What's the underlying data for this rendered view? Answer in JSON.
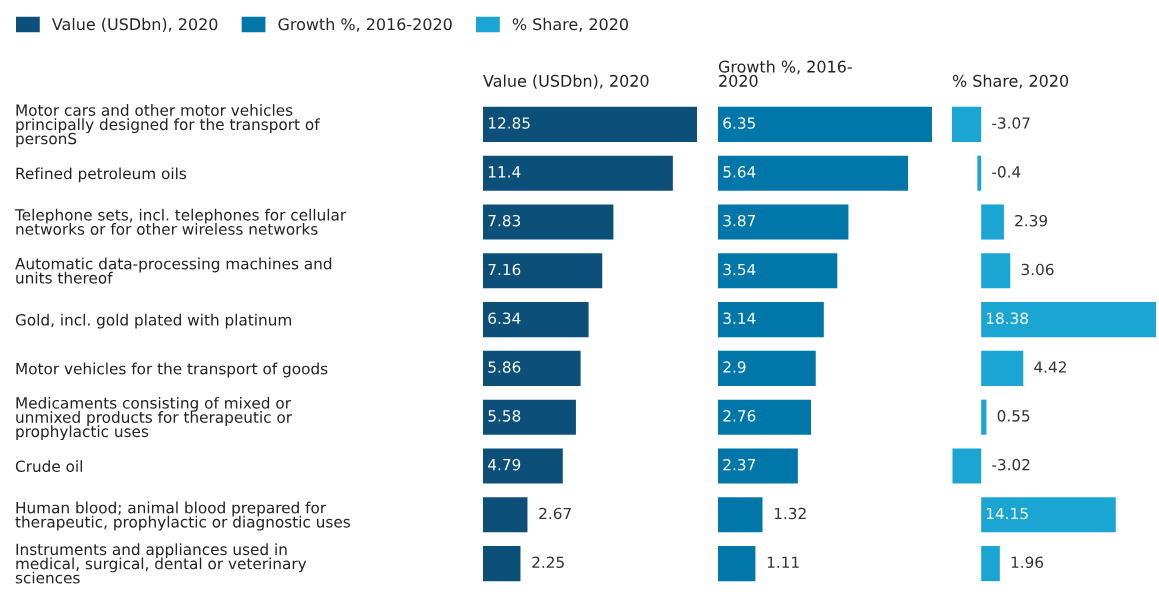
{
  "chart_data": [
    {
      "type": "bar",
      "orientation": "horizontal",
      "title": "Value (USDbn), 2020",
      "categories": [
        "Motor cars and other motor vehicles\nprincipally designed for the transport of\npersonS",
        "Refined petroleum oils",
        "Telephone sets, incl. telephones for cellular\nnetworks or for other wireless networks",
        "Automatic data-processing machines and\nunits thereof",
        "Gold, incl. gold plated with platinum",
        "Motor vehicles for the transport of goods",
        "Medicaments consisting of mixed or\nunmixed products for therapeutic or\nprophylactic uses",
        "Crude oil",
        "Human blood; animal blood prepared for\ntherapeutic, prophylactic or diagnostic uses",
        "Instruments and appliances used in\nmedical, surgical, dental or veterinary\nsciences"
      ],
      "series": [
        {
          "name": "Value (USDbn), 2020",
          "color": "#0c4f78",
          "values": [
            12.85,
            11.4,
            7.83,
            7.16,
            6.34,
            5.86,
            5.58,
            4.79,
            2.67,
            2.25
          ]
        }
      ],
      "data_labels": true,
      "legend": "top left",
      "tick_labels": "y"
    },
    {
      "type": "bar",
      "orientation": "horizontal",
      "title": "Growth %, 2016-\n2020",
      "categories": [
        null,
        null,
        null,
        null,
        null,
        null,
        null,
        null,
        null,
        null
      ],
      "series": [
        {
          "name": "Growth %, 2016-2020",
          "color": "#0077a8",
          "values": [
            6.35,
            5.64,
            3.87,
            3.54,
            3.14,
            2.9,
            2.76,
            2.37,
            1.32,
            1.11
          ]
        }
      ],
      "data_labels": true,
      "legend": "top left",
      "tick_labels": false
    },
    {
      "type": "bar",
      "orientation": "horizontal",
      "title": "% Share, 2020",
      "categories": [
        null,
        null,
        null,
        null,
        null,
        null,
        null,
        null,
        null,
        null
      ],
      "series": [
        {
          "name": "% Share, 2020",
          "color": "#1ba5d3",
          "values": [
            -3.07,
            -0.4,
            2.39,
            3.06,
            18.38,
            4.42,
            0.55,
            -3.02,
            14.15,
            1.96
          ]
        }
      ],
      "data_labels": true,
      "legend": "top left",
      "tick_labels": false
    }
  ]
}
